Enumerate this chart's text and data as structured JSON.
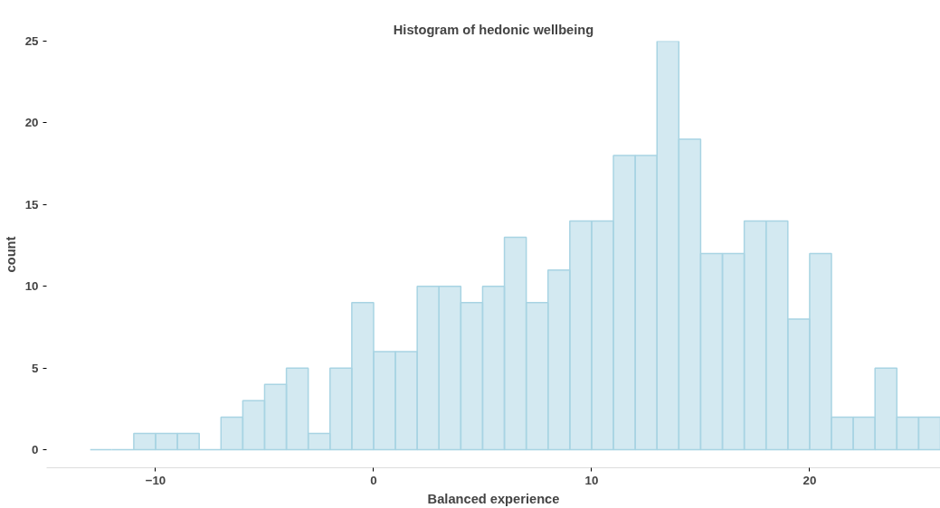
{
  "chart_data": {
    "type": "histogram",
    "title": "Histogram of hedonic wellbeing",
    "xlabel": "Balanced experience",
    "ylabel": "count",
    "bins": [
      -13,
      -12,
      -11,
      -10,
      -9,
      -8,
      -7,
      -6,
      -5,
      -4,
      -3,
      -2,
      -1,
      0,
      1,
      2,
      3,
      4,
      5,
      6,
      7,
      8,
      9,
      10,
      11,
      12,
      13,
      14,
      15,
      16,
      17,
      18,
      19,
      20,
      21,
      22,
      23,
      24,
      25,
      26
    ],
    "values": [
      0,
      0,
      1,
      1,
      1,
      0,
      2,
      3,
      4,
      5,
      1,
      5,
      9,
      6,
      6,
      10,
      10,
      9,
      10,
      13,
      9,
      11,
      14,
      14,
      18,
      18,
      25,
      19,
      12,
      12,
      14,
      14,
      8,
      12,
      2,
      2,
      5,
      2,
      2
    ],
    "color": "#a8d4e3",
    "xlim": [
      -15,
      26
    ],
    "xticks": [
      -10,
      0,
      10,
      20
    ],
    "ylim": [
      -1.1,
      25
    ],
    "yticks": [
      0,
      5,
      10,
      15,
      20,
      25
    ],
    "grid": false
  }
}
